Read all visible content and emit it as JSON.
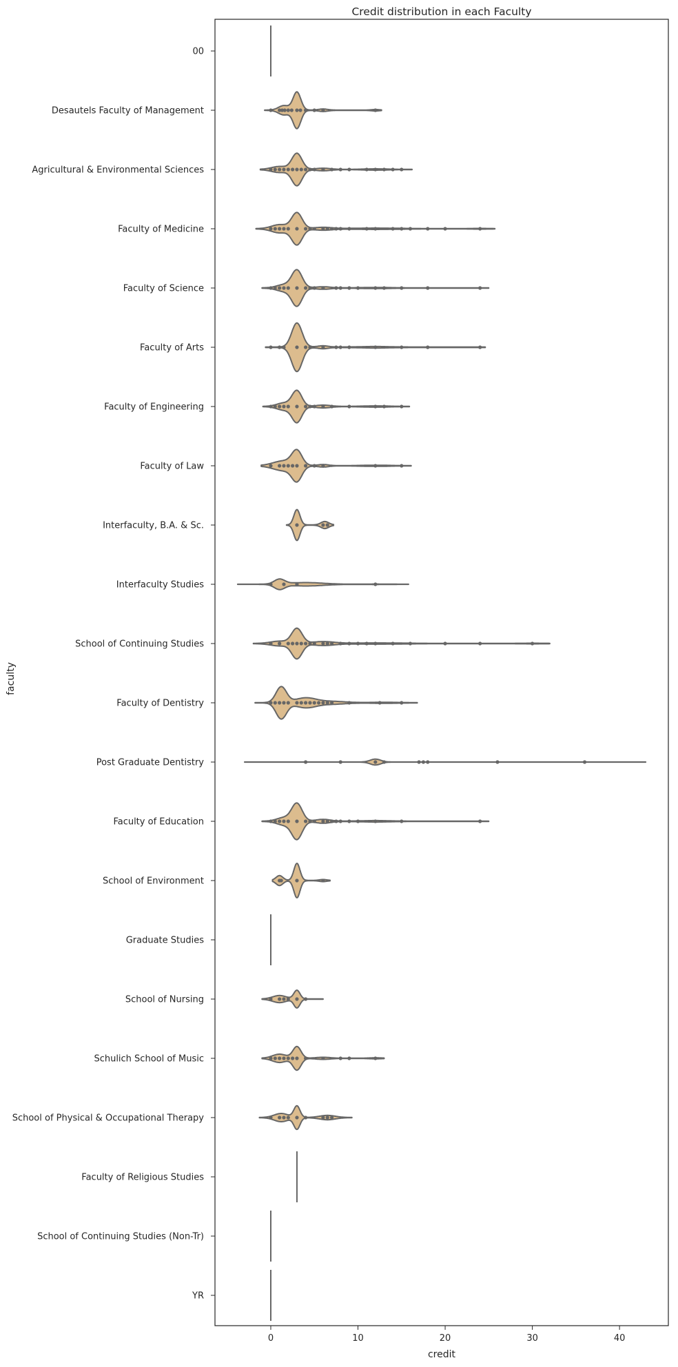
{
  "chart_data": {
    "type": "violin",
    "orientation": "horizontal",
    "title": "Credit distribution in each Faculty",
    "xlabel": "credit",
    "ylabel": "faculty",
    "xlim": [
      -6.4,
      45.6
    ],
    "x_ticks": [
      0,
      10,
      20,
      30,
      40
    ],
    "grid": false,
    "legend": "none",
    "colors": {
      "violin_fill": "#dcbc8e",
      "violin_edge": "#666666",
      "point": "#666666",
      "axis": "#262626"
    },
    "categories": [
      {
        "name": "00",
        "min": 0,
        "max": 0,
        "mode": 0,
        "width": 0,
        "points": []
      },
      {
        "name": "Desautels Faculty of Management",
        "min": -0.7,
        "max": 12.7,
        "mode": 3,
        "width": 0.62,
        "points": [
          0,
          1,
          1.3,
          1.6,
          2,
          2.4,
          3,
          3.4,
          4,
          5,
          6,
          12
        ],
        "bumps": [
          [
            1.5,
            0.25,
            0.6
          ],
          [
            6,
            0.06,
            0.5
          ],
          [
            12,
            0.03,
            0.4
          ]
        ]
      },
      {
        "name": "Agricultural & Environmental Sciences",
        "min": -1.2,
        "max": 16.2,
        "mode": 3,
        "width": 0.55,
        "points": [
          0,
          0.5,
          1,
          1.5,
          2,
          2.5,
          3,
          3.5,
          4,
          4.5,
          5,
          6,
          7,
          8,
          9,
          11,
          12,
          13,
          14,
          15
        ],
        "bumps": [
          [
            1,
            0.18,
            0.9
          ],
          [
            6,
            0.07,
            0.8
          ],
          [
            12,
            0.03,
            1.2
          ]
        ]
      },
      {
        "name": "Faculty of Medicine",
        "min": -1.7,
        "max": 25.7,
        "mode": 3,
        "width": 0.55,
        "points": [
          0,
          0.5,
          1,
          1.5,
          2,
          3,
          4,
          4.5,
          5,
          6,
          6.5,
          7,
          7.5,
          8,
          9,
          11,
          12,
          14,
          15,
          16,
          18,
          20,
          24
        ],
        "bumps": [
          [
            1,
            0.25,
            0.9
          ],
          [
            6,
            0.08,
            1.0
          ],
          [
            12,
            0.03,
            2.5
          ],
          [
            24,
            0.01,
            1.0
          ]
        ]
      },
      {
        "name": "Faculty of Science",
        "min": -1,
        "max": 25,
        "mode": 3,
        "width": 0.62,
        "points": [
          0,
          0.5,
          1,
          1.5,
          2,
          3,
          4,
          4.5,
          5,
          6,
          7.5,
          8,
          9,
          10,
          12,
          13,
          15,
          18,
          24
        ],
        "bumps": [
          [
            1.5,
            0.18,
            0.8
          ],
          [
            6,
            0.06,
            0.8
          ],
          [
            12,
            0.02,
            1.5
          ]
        ]
      },
      {
        "name": "Faculty of Arts",
        "min": -0.6,
        "max": 24.6,
        "mode": 3,
        "width": 0.82,
        "points": [
          0,
          1,
          1.5,
          3,
          4,
          4.5,
          6,
          7.5,
          8,
          9,
          12,
          15,
          18,
          24
        ],
        "bumps": [
          [
            6,
            0.05,
            0.6
          ],
          [
            12,
            0.02,
            1.5
          ]
        ]
      },
      {
        "name": "Faculty of Engineering",
        "min": -0.9,
        "max": 15.9,
        "mode": 3,
        "width": 0.55,
        "points": [
          0,
          0.5,
          1,
          1.5,
          2,
          3,
          4,
          4.5,
          5,
          6,
          7,
          9,
          12,
          13,
          15
        ],
        "bumps": [
          [
            1.5,
            0.22,
            0.8
          ],
          [
            6,
            0.08,
            0.8
          ],
          [
            12,
            0.03,
            1.3
          ]
        ]
      },
      {
        "name": "Faculty of Law",
        "min": -1.1,
        "max": 16.1,
        "mode": 3,
        "width": 0.55,
        "points": [
          0,
          1,
          1.5,
          2,
          2.5,
          3,
          4,
          5,
          6,
          12,
          15
        ],
        "bumps": [
          [
            1.5,
            0.35,
            1.2
          ],
          [
            6,
            0.08,
            0.6
          ],
          [
            12,
            0.03,
            1.5
          ]
        ]
      },
      {
        "name": "Interfaculty, B.A. & Sc.",
        "min": 1.8,
        "max": 7.2,
        "mode": 3,
        "width": 0.52,
        "points": [
          3,
          6,
          6.5
        ],
        "bumps": [
          [
            6.2,
            0.22,
            0.45
          ]
        ]
      },
      {
        "name": "Interfaculty Studies",
        "min": -3.8,
        "max": 15.8,
        "mode": 1,
        "width": 0.18,
        "points": [
          0,
          1.5,
          3,
          12
        ],
        "bumps": [
          [
            4,
            0.35,
            2.0
          ],
          [
            12,
            0.04,
            1.5
          ]
        ]
      },
      {
        "name": "School of Continuing Studies",
        "min": -2,
        "max": 32,
        "mode": 3,
        "width": 0.52,
        "points": [
          0,
          1,
          2,
          2.5,
          3,
          3.5,
          4,
          4.5,
          5,
          6,
          6.5,
          7,
          8,
          9,
          10,
          11,
          12,
          14,
          16,
          20,
          24,
          30
        ],
        "bumps": [
          [
            1,
            0.15,
            1.0
          ],
          [
            6,
            0.12,
            1.2
          ],
          [
            12,
            0.03,
            3.0
          ],
          [
            30,
            0.01,
            1.5
          ]
        ]
      },
      {
        "name": "Faculty of Dentistry",
        "min": -1.8,
        "max": 16.8,
        "mode": 1.2,
        "width": 0.55,
        "points": [
          0,
          0.5,
          1,
          1.5,
          2,
          3,
          3.5,
          4,
          4.5,
          5,
          5.5,
          6,
          6.5,
          7,
          9,
          12.5,
          15
        ],
        "bumps": [
          [
            4,
            0.3,
            1.2
          ],
          [
            7,
            0.08,
            1.5
          ],
          [
            13,
            0.02,
            1.5
          ]
        ]
      },
      {
        "name": "Post Graduate Dentistry",
        "min": -3,
        "max": 43,
        "mode": 12,
        "width": 0.1,
        "points": [
          4,
          8,
          12,
          13,
          17,
          17.5,
          18,
          26,
          36
        ],
        "bumps": [
          [
            26,
            0.015,
            2.0
          ],
          [
            36,
            0.01,
            2.5
          ]
        ]
      },
      {
        "name": "Faculty of Education",
        "min": -1,
        "max": 25,
        "mode": 3,
        "width": 0.62,
        "points": [
          0,
          0.5,
          1,
          1.5,
          2,
          3,
          4,
          4.5,
          5,
          6,
          6.5,
          7,
          7.5,
          8,
          9,
          10,
          12,
          15,
          24
        ],
        "bumps": [
          [
            1.5,
            0.2,
            0.8
          ],
          [
            6,
            0.1,
            0.8
          ],
          [
            12,
            0.03,
            1.5
          ]
        ]
      },
      {
        "name": "School of Environment",
        "min": 0.2,
        "max": 6.8,
        "mode": 3,
        "width": 0.58,
        "points": [
          1,
          1.2,
          3,
          6
        ],
        "bumps": [
          [
            1,
            0.28,
            0.4
          ],
          [
            6,
            0.05,
            0.4
          ]
        ]
      },
      {
        "name": "Graduate Studies",
        "min": 0,
        "max": 0,
        "mode": 0,
        "width": 0,
        "points": []
      },
      {
        "name": "School of Nursing",
        "min": -1,
        "max": 6,
        "mode": 3,
        "width": 0.3,
        "points": [
          0,
          1,
          1.5,
          2,
          3,
          4
        ],
        "bumps": [
          [
            1,
            0.4,
            0.8
          ]
        ]
      },
      {
        "name": "Schulich School of Music",
        "min": -1,
        "max": 13,
        "mode": 3,
        "width": 0.4,
        "points": [
          0,
          0.5,
          1,
          1.5,
          2,
          2.5,
          3,
          4,
          6,
          8,
          9,
          12
        ],
        "bumps": [
          [
            1,
            0.35,
            0.8
          ],
          [
            6,
            0.08,
            0.8
          ],
          [
            12,
            0.03,
            0.8
          ]
        ]
      },
      {
        "name": "School of Physical & Occupational Therapy",
        "min": -1.3,
        "max": 9.3,
        "mode": 3,
        "width": 0.4,
        "points": [
          0,
          1,
          1.5,
          2,
          3,
          4,
          6,
          6.5,
          7
        ],
        "bumps": [
          [
            1.2,
            0.35,
            0.8
          ],
          [
            6.5,
            0.18,
            0.9
          ]
        ]
      },
      {
        "name": "Faculty of Religious Studies",
        "min": 3,
        "max": 3,
        "mode": 3,
        "width": 0,
        "points": []
      },
      {
        "name": "School of Continuing Studies (Non-Tr)",
        "min": 0,
        "max": 0,
        "mode": 0,
        "width": 0,
        "points": []
      },
      {
        "name": "YR",
        "min": 0,
        "max": 0,
        "mode": 0,
        "width": 0,
        "points": []
      }
    ]
  }
}
